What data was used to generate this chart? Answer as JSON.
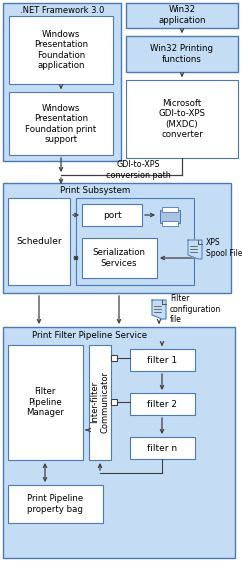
{
  "fig_width": 2.42,
  "fig_height": 5.69,
  "dpi": 100,
  "bg_color": "#ffffff",
  "lb": "#c5ddf4",
  "lb2": "#b8d4ee",
  "wf": "#ffffff",
  "db": "#4a7ab5",
  "ac": "#404040",
  "title_dotnet": ".NET Framework 3.0",
  "title_win32": "Win32\napplication",
  "box_wpf_app": "Windows\nPresentation\nFoundation\napplication",
  "box_wpf_print": "Windows\nPresentation\nFoundation print\nsupport",
  "box_win32_print": "Win32 Printing\nfunctions",
  "box_mxdc": "Microsoft\nGDI-to-XPS\n(MXDC)\nconverter",
  "label_gdi": "GDI-to-XPS\nconversion path",
  "label_subsystem": "Print Subsystem",
  "label_scheduler": "Scheduler",
  "label_port": "port",
  "label_serial": "Serialization\nServices",
  "label_xps": "XPS\nSpool File",
  "label_filter_cfg": "Filter\nconfiguration\nfile",
  "label_pipeline_service": "Print Filter Pipeline Service",
  "label_fpm": "Filter\nPipeline\nManager",
  "label_ifc": "Inter-filter\nCommunicator",
  "label_filter1": "filter 1",
  "label_filter2": "filter 2",
  "label_filtern": "filter n",
  "label_prop_bag": "Print Pipeline\nproperty bag"
}
